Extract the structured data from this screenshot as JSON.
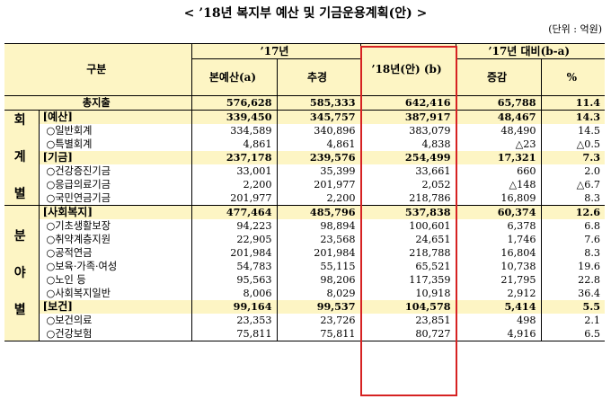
{
  "title": "< ’18년 복지부 예산 및 기금운용계획(안) >",
  "unit": "(단위 : 억원)",
  "header": {
    "gubun": "구분",
    "y17": "’17년",
    "base": "본예산(a)",
    "supp": "추경",
    "y18": "’18년(안) (b)",
    "diff_group": "’17년 대비(b-a)",
    "diff": "증감",
    "pct": "%"
  },
  "groups": {
    "hoegye": [
      "회",
      "계",
      "별"
    ],
    "bunya": [
      "분",
      "야",
      "별"
    ]
  },
  "rows": [
    {
      "label": "총지출",
      "a": "576,628",
      "supp": "585,333",
      "b": "642,416",
      "diff": "65,788",
      "pct": "11.4",
      "kind": "total"
    },
    {
      "label": "[예산]",
      "a": "339,450",
      "supp": "345,757",
      "b": "387,917",
      "diff": "48,467",
      "pct": "14.3",
      "kind": "sub"
    },
    {
      "label": "○일반회계",
      "a": "334,589",
      "supp": "340,896",
      "b": "383,079",
      "diff": "48,490",
      "pct": "14.5",
      "kind": "item"
    },
    {
      "label": "○특별회계",
      "a": "4,861",
      "supp": "4,861",
      "b": "4,838",
      "diff": "△23",
      "pct": "△0.5",
      "kind": "item"
    },
    {
      "label": "[기금]",
      "a": "237,178",
      "supp": "239,576",
      "b": "254,499",
      "diff": "17,321",
      "pct": "7.3",
      "kind": "sub"
    },
    {
      "label": "○건강증진기금",
      "a": "33,001",
      "supp": "35,399",
      "b": "33,661",
      "diff": "660",
      "pct": "2.0",
      "kind": "item"
    },
    {
      "label": "○응급의료기금",
      "a": "2,200",
      "supp": "201,977",
      "b": "2,052",
      "diff": "△148",
      "pct": "△6.7",
      "kind": "item"
    },
    {
      "label": "○국민연금기금",
      "a": "201,977",
      "supp": "2,200",
      "b": "218,786",
      "diff": "16,809",
      "pct": "8.3",
      "kind": "item"
    },
    {
      "label": "[사회복지]",
      "a": "477,464",
      "supp": "485,796",
      "b": "537,838",
      "diff": "60,374",
      "pct": "12.6",
      "kind": "sub"
    },
    {
      "label": "○기초생활보장",
      "a": "94,223",
      "supp": "98,894",
      "b": "100,601",
      "diff": "6,378",
      "pct": "6.8",
      "kind": "item"
    },
    {
      "label": "○취약계층지원",
      "a": "22,905",
      "supp": "23,568",
      "b": "24,651",
      "diff": "1,746",
      "pct": "7.6",
      "kind": "item"
    },
    {
      "label": "○공적연금",
      "a": "201,984",
      "supp": "201,984",
      "b": "218,788",
      "diff": "16,804",
      "pct": "8.3",
      "kind": "item"
    },
    {
      "label": "○보육·가족·여성",
      "a": "54,783",
      "supp": "55,115",
      "b": "65,521",
      "diff": "10,738",
      "pct": "19.6",
      "kind": "item"
    },
    {
      "label": "○노인 등",
      "a": "95,563",
      "supp": "98,206",
      "b": "117,359",
      "diff": "21,795",
      "pct": "22.8",
      "kind": "item"
    },
    {
      "label": "○사회복지일반",
      "a": "8,006",
      "supp": "8,029",
      "b": "10,918",
      "diff": "2,912",
      "pct": "36.4",
      "kind": "item"
    },
    {
      "label": "[보건]",
      "a": "99,164",
      "supp": "99,537",
      "b": "104,578",
      "diff": "5,414",
      "pct": "5.5",
      "kind": "sub"
    },
    {
      "label": "○보건의료",
      "a": "23,353",
      "supp": "23,726",
      "b": "23,851",
      "diff": "498",
      "pct": "2.1",
      "kind": "item"
    },
    {
      "label": "○건강보험",
      "a": "75,811",
      "supp": "75,811",
      "b": "80,727",
      "diff": "4,916",
      "pct": "6.5",
      "kind": "item"
    }
  ],
  "colors": {
    "header_bg": "#fdf5c4",
    "highlight": "#d62222"
  }
}
